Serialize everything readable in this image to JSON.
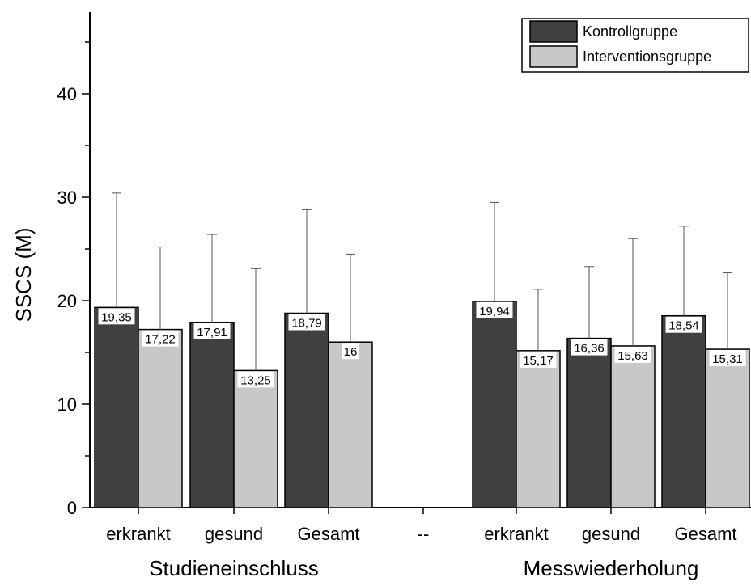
{
  "chart_data": {
    "type": "bar",
    "ylabel": "SSCS (M)",
    "ylim": [
      0,
      48
    ],
    "yticks": [
      0,
      10,
      20,
      30,
      40
    ],
    "categories": [
      "erkrankt",
      "gesund",
      "Gesamt",
      "--",
      "erkrankt",
      "gesund",
      "Gesamt"
    ],
    "groups": [
      {
        "label": "Studieneinschluss"
      },
      {
        "label": "Messwiederholung"
      }
    ],
    "series": [
      {
        "name": "Kontrollgruppe",
        "color": "#404040",
        "values": [
          19.35,
          17.91,
          18.79,
          null,
          19.94,
          16.36,
          18.54
        ],
        "labels": [
          "19,35",
          "17,91",
          "18,79",
          "",
          "19,94",
          "16,36",
          "18,54"
        ],
        "error_upper": [
          30.4,
          26.4,
          28.8,
          null,
          29.5,
          23.3,
          27.2
        ]
      },
      {
        "name": "Interventionsgruppe",
        "color": "#c8c8c8",
        "values": [
          17.22,
          13.25,
          16,
          null,
          15.17,
          15.63,
          15.31
        ],
        "labels": [
          "17,22",
          "13,25",
          "16",
          "",
          "15,17",
          "15,63",
          "15,31"
        ],
        "error_upper": [
          25.2,
          23.1,
          24.5,
          null,
          21.1,
          26.0,
          22.7
        ]
      }
    ],
    "legend_position": "top-right",
    "grid": false
  }
}
